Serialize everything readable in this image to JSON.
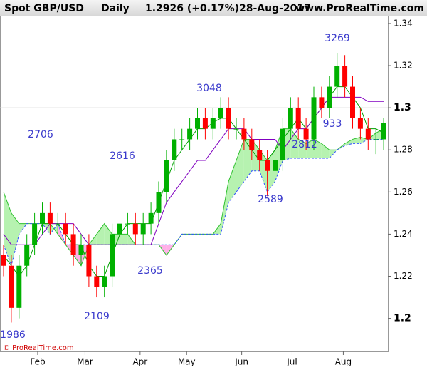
{
  "chart_data": {
    "type": "candlestick",
    "symbol": "Spot GBP/USD",
    "period": "Daily",
    "last": "1.2926 (+0.17%)",
    "date": "28-Aug-2017",
    "site": "www.ProRealTime.com",
    "copyright": "© ProRealTime.com",
    "up_color": "#00b000",
    "down_color": "#ff0000",
    "open": [
      1.23,
      1.225,
      1.205,
      1.225,
      1.235,
      1.245,
      1.25,
      1.245,
      1.245,
      1.24,
      1.23,
      1.235,
      1.22,
      1.215,
      1.22,
      1.24,
      1.245,
      1.245,
      1.24,
      1.245,
      1.25,
      1.26,
      1.275,
      1.285,
      1.285,
      1.29,
      1.295,
      1.29,
      1.295,
      1.3,
      1.29,
      1.29,
      1.285,
      1.28,
      1.275,
      1.27,
      1.275,
      1.29,
      1.3,
      1.29,
      1.285,
      1.305,
      1.3,
      1.31,
      1.32,
      1.31,
      1.295,
      1.29,
      1.285,
      1.285
    ],
    "high": [
      1.235,
      1.23,
      1.23,
      1.24,
      1.25,
      1.255,
      1.255,
      1.25,
      1.25,
      1.245,
      1.24,
      1.24,
      1.225,
      1.225,
      1.245,
      1.25,
      1.25,
      1.25,
      1.25,
      1.255,
      1.265,
      1.28,
      1.29,
      1.29,
      1.295,
      1.3,
      1.3,
      1.3,
      1.305,
      1.305,
      1.295,
      1.295,
      1.29,
      1.285,
      1.28,
      1.28,
      1.295,
      1.305,
      1.305,
      1.295,
      1.31,
      1.31,
      1.315,
      1.326,
      1.325,
      1.315,
      1.3,
      1.295,
      1.29,
      1.295
    ],
    "low": [
      1.22,
      1.198,
      1.2,
      1.22,
      1.23,
      1.24,
      1.24,
      1.24,
      1.235,
      1.225,
      1.225,
      1.215,
      1.21,
      1.21,
      1.215,
      1.235,
      1.24,
      1.235,
      1.235,
      1.24,
      1.245,
      1.255,
      1.27,
      1.28,
      1.28,
      1.285,
      1.285,
      1.285,
      1.29,
      1.285,
      1.285,
      1.28,
      1.275,
      1.27,
      1.258,
      1.265,
      1.27,
      1.285,
      1.285,
      1.28,
      1.28,
      1.295,
      1.295,
      1.305,
      1.305,
      1.29,
      1.285,
      1.28,
      1.278,
      1.28
    ],
    "close": [
      1.225,
      1.205,
      1.225,
      1.235,
      1.245,
      1.25,
      1.245,
      1.245,
      1.24,
      1.23,
      1.235,
      1.22,
      1.215,
      1.22,
      1.24,
      1.245,
      1.245,
      1.24,
      1.245,
      1.25,
      1.26,
      1.275,
      1.285,
      1.285,
      1.29,
      1.295,
      1.29,
      1.295,
      1.3,
      1.29,
      1.29,
      1.285,
      1.28,
      1.275,
      1.27,
      1.275,
      1.29,
      1.3,
      1.29,
      1.285,
      1.305,
      1.3,
      1.31,
      1.32,
      1.31,
      1.295,
      1.29,
      1.285,
      1.285,
      1.2926
    ],
    "lines": [
      {
        "color": "#00a000",
        "values": [
          1.23,
          1.225,
          1.22,
          1.225,
          1.235,
          1.245,
          1.245,
          1.245,
          1.24,
          1.235,
          1.235,
          1.225,
          1.22,
          1.22,
          1.23,
          1.24,
          1.245,
          1.245,
          1.245,
          1.245,
          1.255,
          1.265,
          1.275,
          1.28,
          1.285,
          1.29,
          1.29,
          1.293,
          1.295,
          1.295,
          1.29,
          1.285,
          1.28,
          1.275,
          1.275,
          1.28,
          1.285,
          1.29,
          1.295,
          1.29,
          1.295,
          1.3,
          1.305,
          1.31,
          1.31,
          1.305,
          1.3,
          1.29,
          1.29,
          1.288
        ]
      },
      {
        "color": "#8000c0",
        "values": [
          1.24,
          1.235,
          1.235,
          1.235,
          1.235,
          1.24,
          1.245,
          1.245,
          1.245,
          1.245,
          1.24,
          1.235,
          1.235,
          1.235,
          1.235,
          1.235,
          1.235,
          1.235,
          1.235,
          1.235,
          1.245,
          1.255,
          1.26,
          1.265,
          1.27,
          1.275,
          1.275,
          1.28,
          1.285,
          1.29,
          1.29,
          1.29,
          1.285,
          1.285,
          1.285,
          1.285,
          1.28,
          1.285,
          1.29,
          1.29,
          1.295,
          1.3,
          1.305,
          1.305,
          1.305,
          1.305,
          1.305,
          1.303,
          1.303,
          1.303
        ]
      }
    ],
    "span_a": {
      "color": "#30c030",
      "values": [
        1.26,
        1.25,
        1.245,
        1.245,
        1.245,
        1.245,
        1.245,
        1.24,
        1.235,
        1.23,
        1.225,
        1.235,
        1.24,
        1.245,
        1.24,
        1.24,
        1.24,
        1.235,
        1.235,
        1.235,
        1.235,
        1.23,
        1.235,
        1.24,
        1.24,
        1.24,
        1.24,
        1.24,
        1.245,
        1.265,
        1.275,
        1.285,
        1.285,
        1.28,
        1.275,
        1.28,
        1.29,
        1.29,
        1.285,
        1.283,
        1.285,
        1.283,
        1.28,
        1.28,
        1.283,
        1.285,
        1.286,
        1.285,
        1.288,
        1.29
      ]
    },
    "span_b": {
      "color": "#3050ff",
      "values": [
        1.235,
        1.225,
        1.24,
        1.245,
        1.245,
        1.245,
        1.24,
        1.245,
        1.235,
        1.235,
        1.235,
        1.235,
        1.235,
        1.235,
        1.235,
        1.235,
        1.235,
        1.235,
        1.235,
        1.235,
        1.235,
        1.235,
        1.235,
        1.24,
        1.24,
        1.24,
        1.24,
        1.24,
        1.24,
        1.255,
        1.26,
        1.265,
        1.27,
        1.27,
        1.26,
        1.265,
        1.275,
        1.276,
        1.276,
        1.276,
        1.276,
        1.276,
        1.276,
        1.28,
        1.282,
        1.283,
        1.283,
        1.285,
        1.285,
        1.285
      ]
    },
    "cloud_up_color": "#b6f2b0",
    "cloud_down_color": "#ffb0e8",
    "annotations": [
      "1986",
      "2109",
      "2365",
      "2616",
      "2706",
      "3048",
      "2589",
      "2812",
      "933",
      "3269"
    ],
    "ylim": [
      1.1843,
      1.3437
    ],
    "yticks": [
      1.2,
      1.22,
      1.24,
      1.26,
      1.28,
      1.3,
      1.32,
      1.34
    ],
    "xticks": [
      {
        "value": 4.4,
        "label": "Feb"
      },
      {
        "value": 10.5,
        "label": "Mar"
      },
      {
        "value": 17.6,
        "label": "Apr"
      },
      {
        "value": 23.6,
        "label": "May"
      },
      {
        "value": 30.7,
        "label": "Jun"
      },
      {
        "value": 37.2,
        "label": "Jul"
      },
      {
        "value": 43.8,
        "label": "Aug"
      }
    ]
  }
}
